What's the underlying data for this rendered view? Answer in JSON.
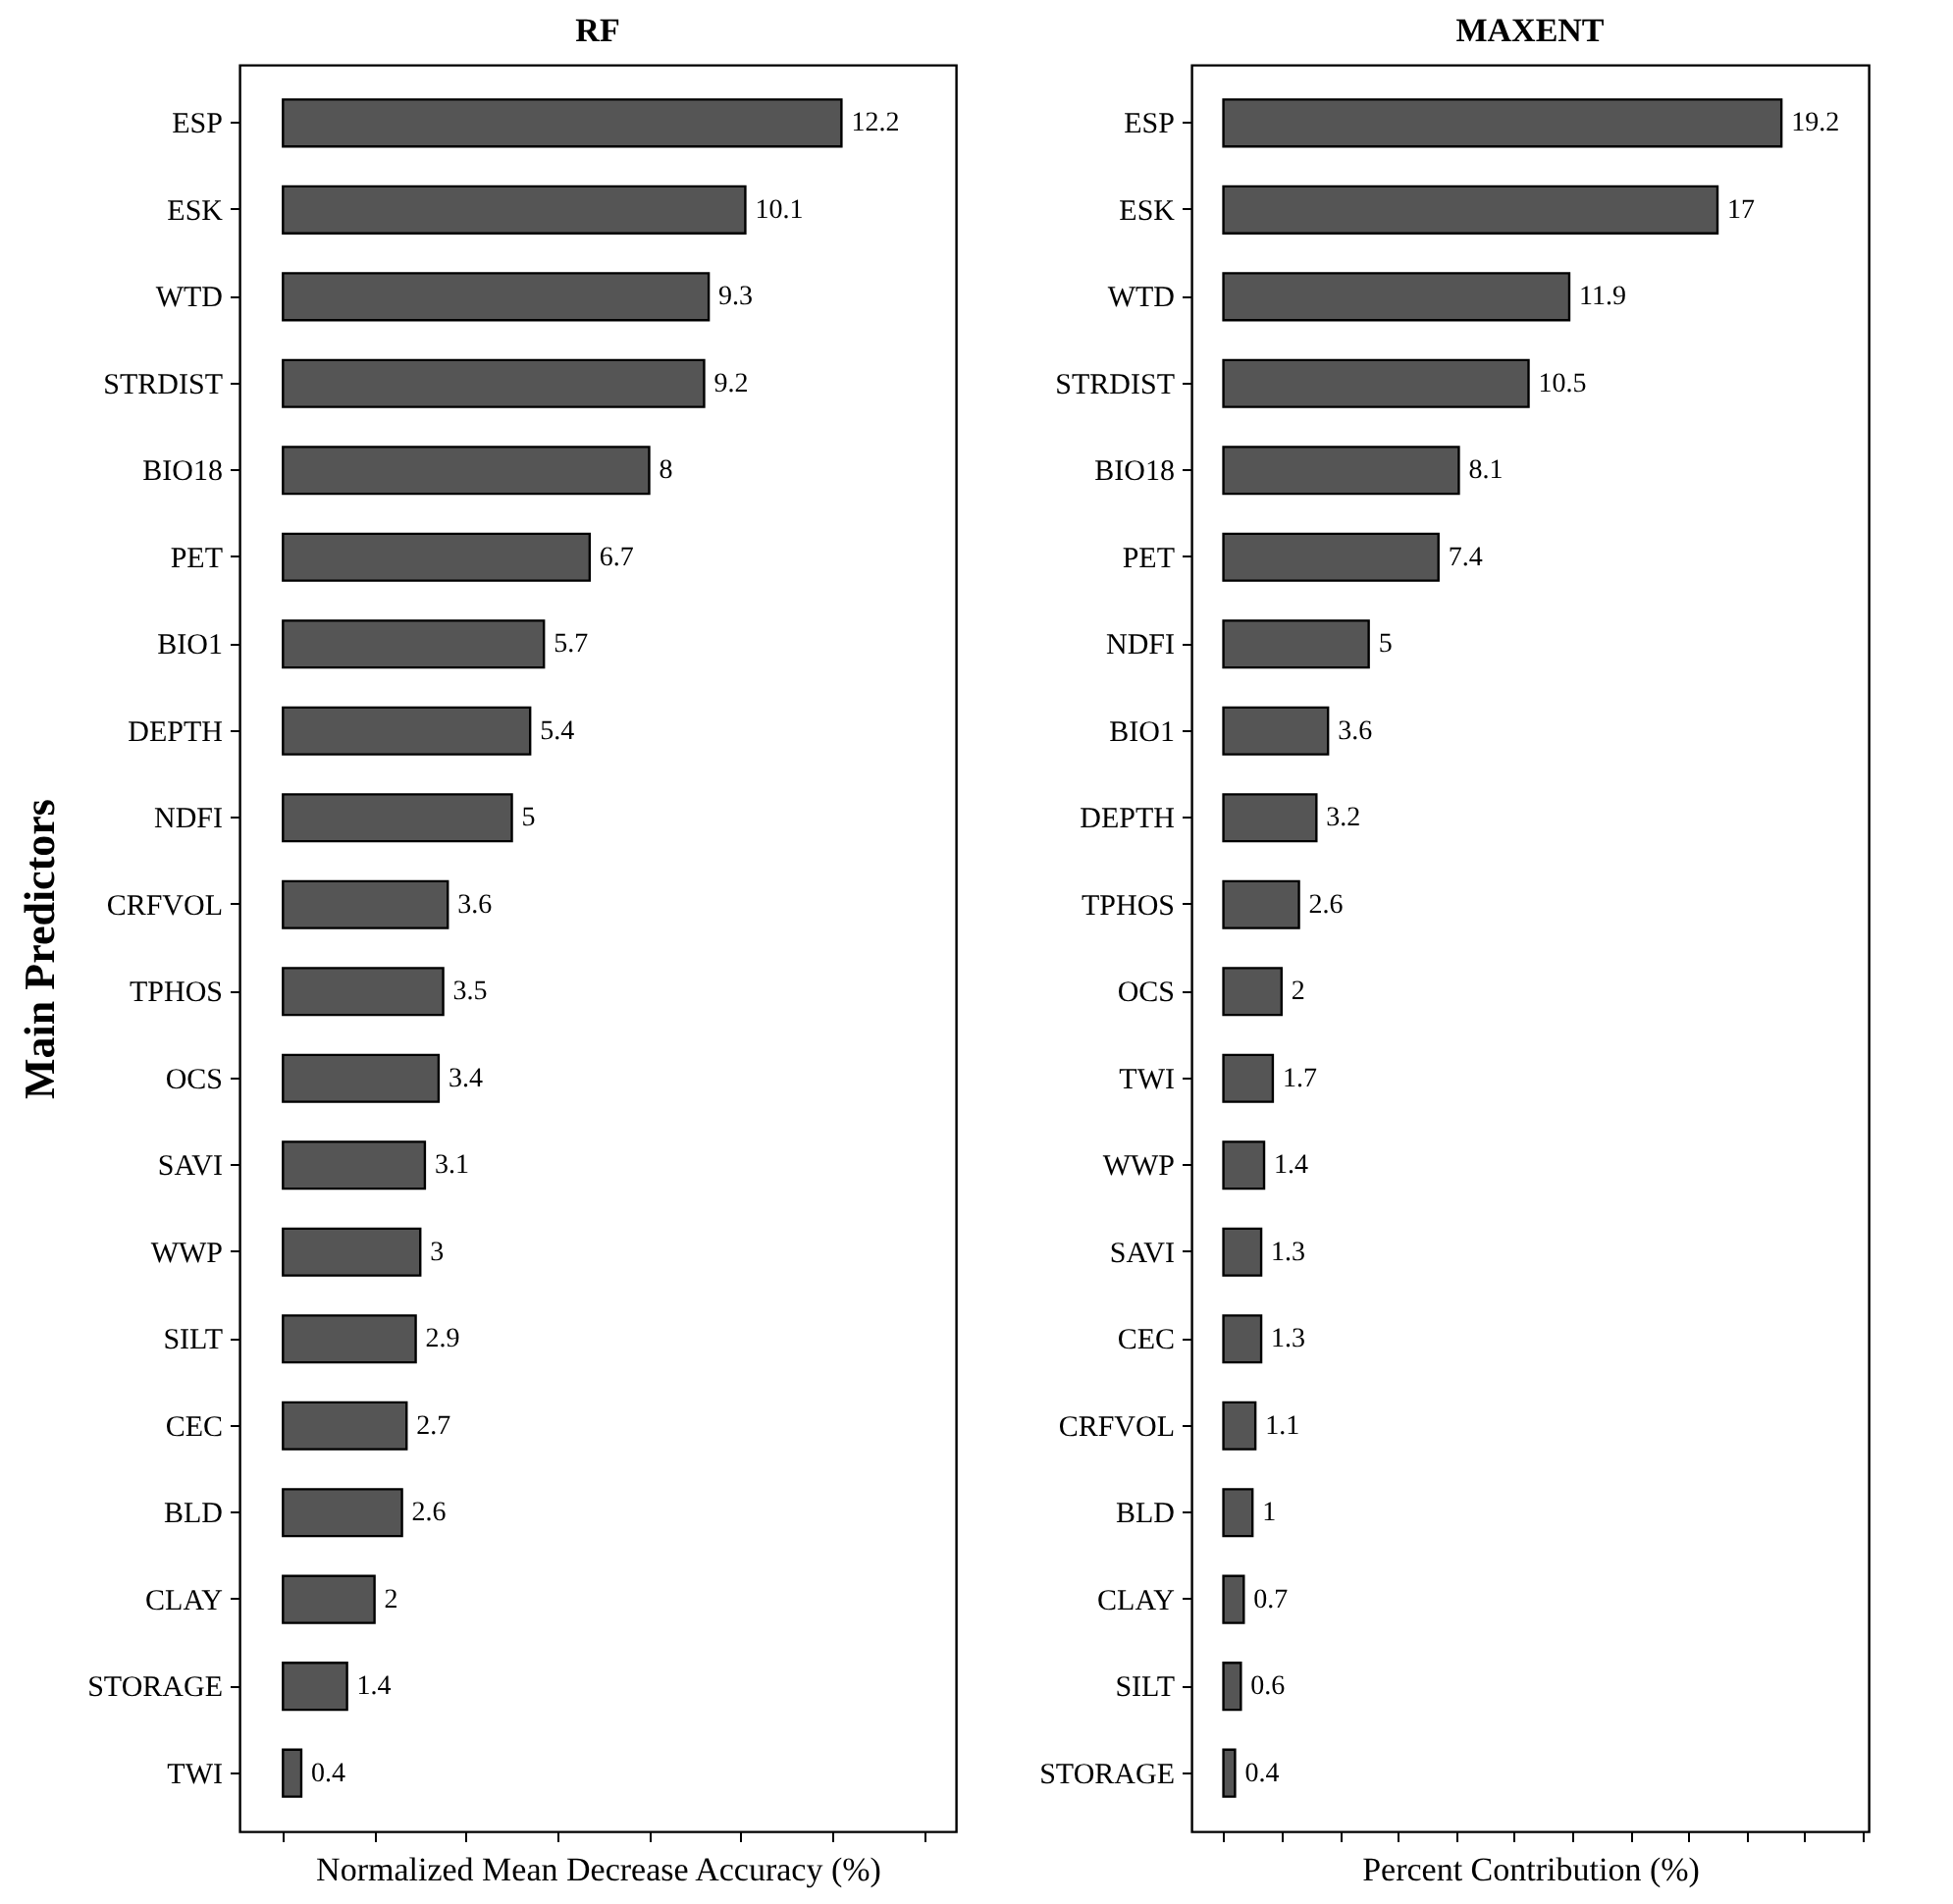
{
  "chart_data": [
    {
      "type": "bar",
      "title": "RF",
      "xlabel": "Normalized Mean Decrease Accuracy (%)",
      "ylabel": "Main Predictors",
      "orientation": "horizontal",
      "categories": [
        "ESP",
        "ESK",
        "WTD",
        "STRDIST",
        "BIO18",
        "PET",
        "BIO1",
        "DEPTH",
        "NDFI",
        "CRFVOL",
        "TPHOS",
        "OCS",
        "SAVI",
        "WWP",
        "SILT",
        "CEC",
        "BLD",
        "CLAY",
        "STORAGE",
        "TWI"
      ],
      "values": [
        12.2,
        10.1,
        9.3,
        9.2,
        8,
        6.7,
        5.7,
        5.4,
        5,
        3.6,
        3.5,
        3.4,
        3.1,
        3,
        2.9,
        2.7,
        2.6,
        2,
        1.4,
        0.4
      ],
      "color": "#555555",
      "data_labels": true,
      "xlim": [
        -0.95,
        14.7
      ],
      "xticks": [
        {
          "value": 0,
          "label": null
        },
        {
          "value": 2,
          "label": null
        },
        {
          "value": 4,
          "label": null
        },
        {
          "value": 6,
          "label": null
        },
        {
          "value": 8,
          "label": null
        },
        {
          "value": 10,
          "label": null
        },
        {
          "value": 12,
          "label": null
        },
        {
          "value": 14,
          "label": null
        }
      ],
      "tick_labels": "y",
      "grid": false
    },
    {
      "type": "bar",
      "title": "MAXENT",
      "xlabel": "Percent Contribution (%)",
      "orientation": "horizontal",
      "categories": [
        "ESP",
        "ESK",
        "WTD",
        "STRDIST",
        "BIO18",
        "PET",
        "NDFI",
        "BIO1",
        "DEPTH",
        "TPHOS",
        "OCS",
        "TWI",
        "WWP",
        "SAVI",
        "CEC",
        "CRFVOL",
        "BLD",
        "CLAY",
        "SILT",
        "STORAGE"
      ],
      "values": [
        19.2,
        17,
        11.9,
        10.5,
        8.1,
        7.4,
        5,
        3.6,
        3.2,
        2.6,
        2,
        1.7,
        1.4,
        1.3,
        1.3,
        1.1,
        1,
        0.7,
        0.6,
        0.4
      ],
      "color": "#555555",
      "data_labels": true,
      "xlim": [
        -1.1,
        22.2
      ],
      "xticks": [
        {
          "value": 0,
          "label": null
        },
        {
          "value": 2,
          "label": null
        },
        {
          "value": 4,
          "label": null
        },
        {
          "value": 6,
          "label": null
        },
        {
          "value": 8,
          "label": null
        },
        {
          "value": 10,
          "label": null
        },
        {
          "value": 12,
          "label": null
        },
        {
          "value": 14,
          "label": null
        },
        {
          "value": 16,
          "label": null
        },
        {
          "value": 18,
          "label": null
        },
        {
          "value": 20,
          "label": null
        },
        {
          "value": 22,
          "label": null
        }
      ],
      "tick_labels": "y",
      "grid": false
    }
  ]
}
